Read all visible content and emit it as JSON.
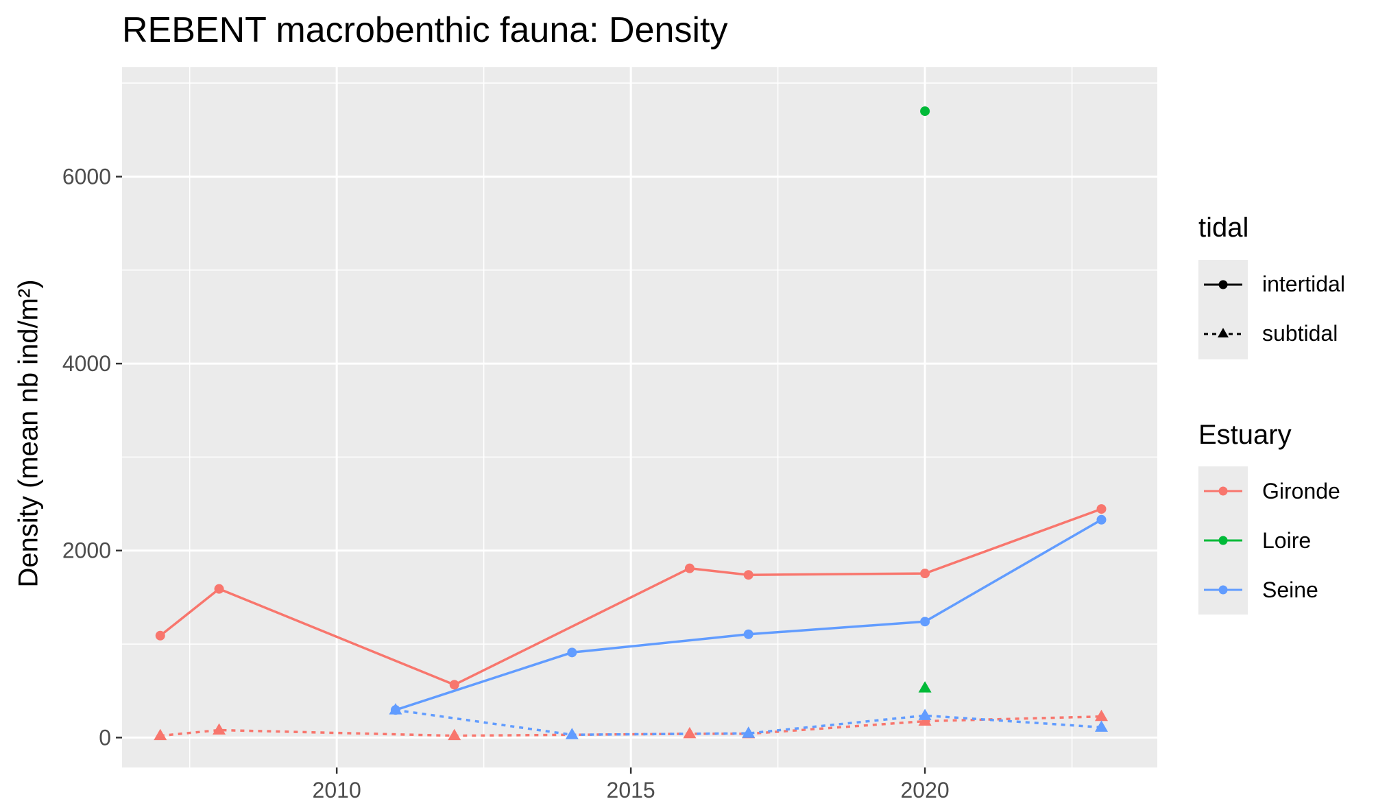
{
  "chart_data": {
    "type": "line",
    "title": "REBENT macrobenthic fauna: Density",
    "xlabel": "",
    "ylabel": "Density (mean nb ind/m²)",
    "xlim": [
      2006.35,
      2023.95
    ],
    "ylim": [
      -320,
      7170
    ],
    "x_ticks": [
      2010,
      2015,
      2020
    ],
    "y_ticks": [
      0,
      2000,
      4000,
      6000
    ],
    "grid": true,
    "colors": {
      "Gironde": "#F8766D",
      "Loire": "#00BA38",
      "Seine": "#619CFF",
      "panel": "#EBEBEB",
      "grid": "#FFFFFF"
    },
    "series": [
      {
        "name": "Gironde intertidal",
        "estuary": "Gironde",
        "tidal": "intertidal",
        "x": [
          2007,
          2008,
          2012,
          2016,
          2017,
          2020,
          2023
        ],
        "values": [
          1090,
          1590,
          565,
          1810,
          1740,
          1755,
          2445
        ]
      },
      {
        "name": "Gironde subtidal",
        "estuary": "Gironde",
        "tidal": "subtidal",
        "x": [
          2007,
          2008,
          2012,
          2016,
          2017,
          2020,
          2023
        ],
        "values": [
          20,
          80,
          20,
          40,
          40,
          175,
          225
        ]
      },
      {
        "name": "Loire intertidal",
        "estuary": "Loire",
        "tidal": "intertidal",
        "x": [
          2020
        ],
        "values": [
          6700
        ]
      },
      {
        "name": "Loire subtidal",
        "estuary": "Loire",
        "tidal": "subtidal",
        "x": [
          2020
        ],
        "values": [
          530
        ]
      },
      {
        "name": "Seine intertidal",
        "estuary": "Seine",
        "tidal": "intertidal",
        "x": [
          2011,
          2014,
          2017,
          2020,
          2023
        ],
        "values": [
          295,
          910,
          1105,
          1240,
          2330
        ]
      },
      {
        "name": "Seine subtidal",
        "estuary": "Seine",
        "tidal": "subtidal",
        "x": [
          2011,
          2014,
          2017,
          2020,
          2023
        ],
        "values": [
          295,
          30,
          45,
          235,
          110
        ]
      }
    ],
    "legend": {
      "placement": "right",
      "tidal": {
        "title": "tidal",
        "entries": [
          "intertidal",
          "subtidal"
        ]
      },
      "estuary": {
        "title": "Estuary",
        "entries": [
          "Gironde",
          "Loire",
          "Seine"
        ]
      }
    }
  }
}
